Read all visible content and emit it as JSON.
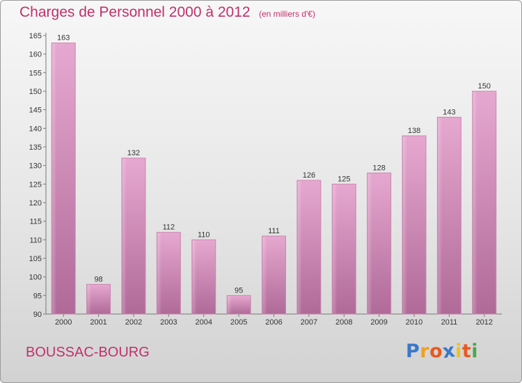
{
  "chart_data": {
    "type": "bar",
    "title": "Charges de Personnel 2000 à 2012",
    "subtitle": "(en milliers d'€)",
    "categories": [
      "2000",
      "2001",
      "2002",
      "2003",
      "2004",
      "2005",
      "2006",
      "2007",
      "2008",
      "2009",
      "2010",
      "2011",
      "2012"
    ],
    "values": [
      163,
      98,
      132,
      112,
      110,
      95,
      111,
      126,
      125,
      128,
      138,
      143,
      150
    ],
    "ylim": [
      90,
      165
    ],
    "yticks": [
      90,
      95,
      100,
      105,
      110,
      115,
      120,
      125,
      130,
      135,
      140,
      145,
      150,
      155,
      160,
      165
    ],
    "xlabel": "",
    "ylabel": "",
    "grid": false,
    "bar_color": "#d68fb9"
  },
  "commune": "BOUSSAC-BOURG",
  "logo": {
    "letters": [
      "P",
      "r",
      "o",
      "x",
      "i",
      "t",
      "i"
    ],
    "colors": [
      "#3a78c8",
      "#f0a020",
      "#e85a20",
      "#3a78c8",
      "#f0c020",
      "#e85a20",
      "#49a84a"
    ]
  }
}
